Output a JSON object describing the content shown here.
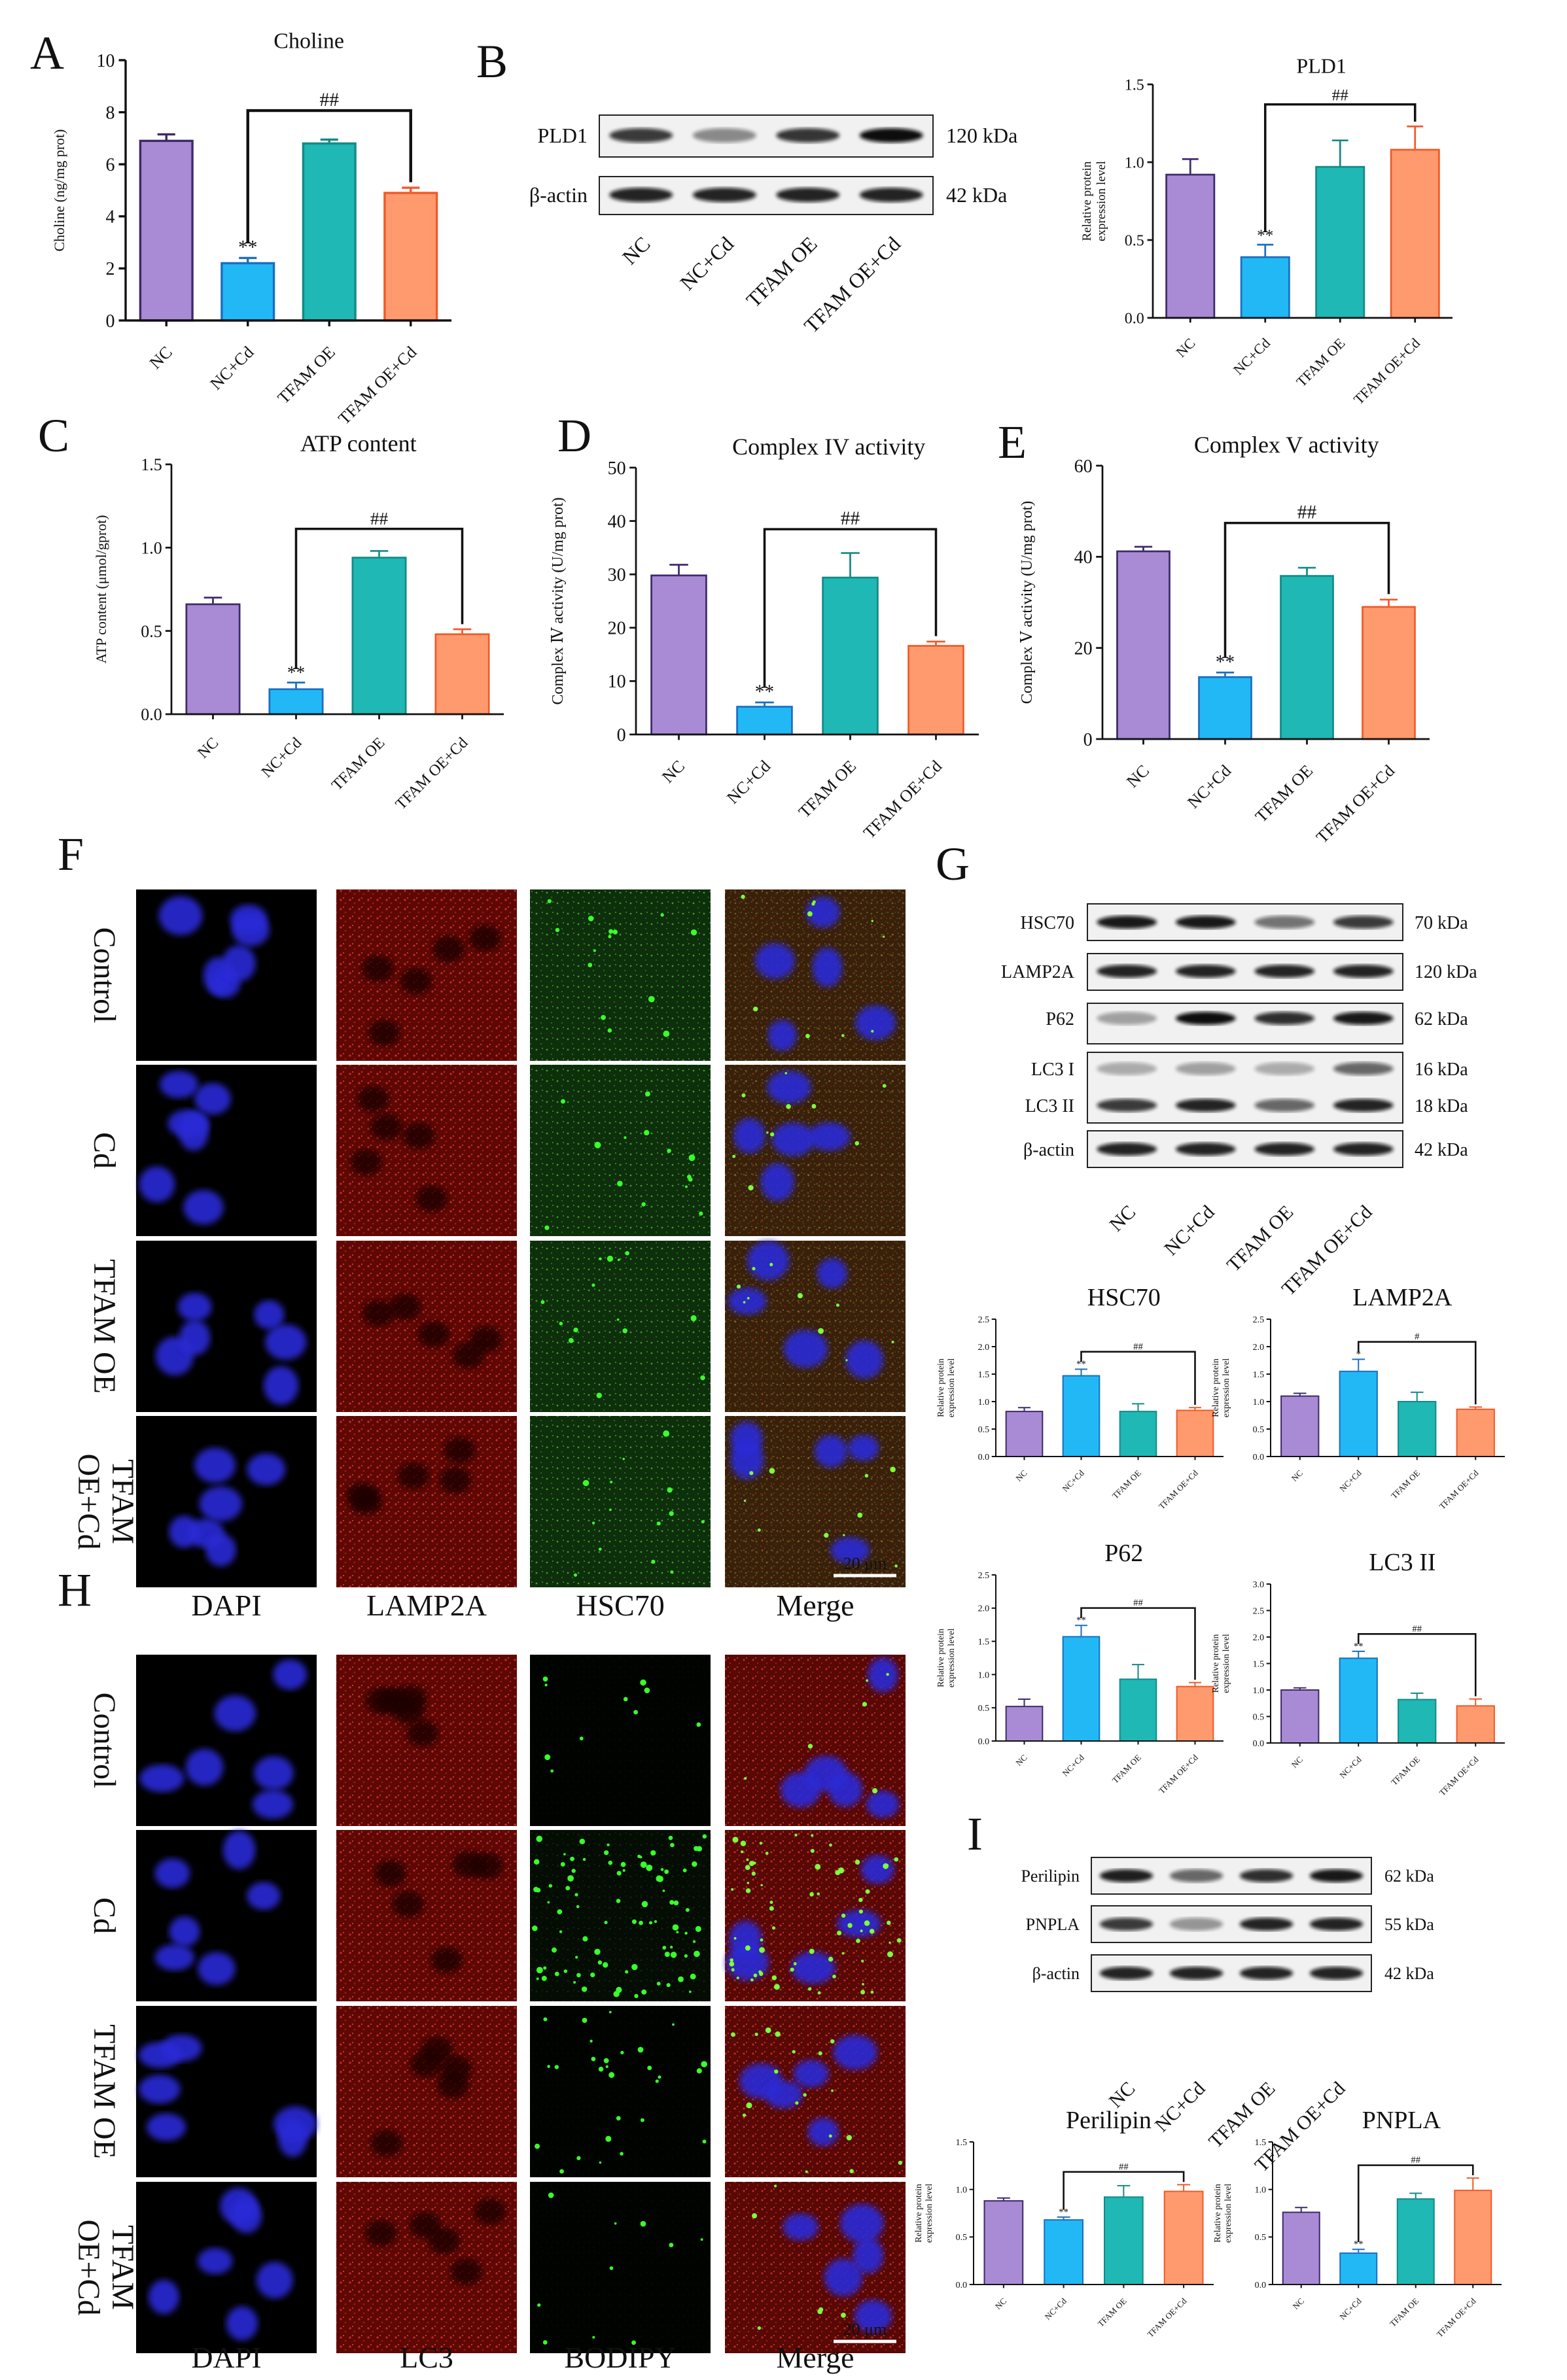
{
  "panel_letters": {
    "A": "A",
    "B": "B",
    "C": "C",
    "D": "D",
    "E": "E",
    "F": "F",
    "G": "G",
    "H": "H",
    "I": "I"
  },
  "colors": {
    "nc": "#A88BD4",
    "ncd": "#22B8F6",
    "oe": "#1FB8B4",
    "oecd": "#FF9A6E",
    "nc_edge": "#3C2A6B",
    "ncd_edge": "#1A6FC0",
    "oe_edge": "#148A86",
    "oecd_edge": "#F05A28"
  },
  "western_blots": {
    "PLD1": {
      "lanes": [
        "NC",
        "NC+Cd",
        "TFAM OE",
        "TFAM OE+Cd"
      ],
      "rows": [
        {
          "label": "PLD1",
          "size": "120 kDa"
        },
        {
          "label": "β-actin",
          "size": "42 kDa"
        }
      ]
    },
    "G": {
      "lanes": [
        "NC",
        "NC+Cd",
        "TFAM OE",
        "TFAM OE+Cd"
      ],
      "rows": [
        {
          "label": "HSC70",
          "size": "70 kDa"
        },
        {
          "label": "LAMP2A",
          "size": "120 kDa"
        },
        {
          "label": "P62",
          "size": "62 kDa"
        },
        {
          "label": "LC3 I",
          "size": "16 kDa"
        },
        {
          "label": "LC3 II",
          "size": "18 kDa"
        },
        {
          "label": "β-actin",
          "size": "42 kDa"
        }
      ]
    },
    "I": {
      "lanes": [
        "NC",
        "NC+Cd",
        "TFAM OE",
        "TFAM OE+Cd"
      ],
      "rows": [
        {
          "label": "Perilipin",
          "size": "62 kDa"
        },
        {
          "label": "PNPLA",
          "size": "55 kDa"
        },
        {
          "label": "β-actin",
          "size": "42 kDa"
        }
      ]
    }
  },
  "micrographs": {
    "F": {
      "rows": [
        "Control",
        "Cd",
        "TFAM OE",
        "TFAM\nOE+Cd"
      ],
      "cols": [
        "DAPI",
        "LAMP2A",
        "HSC70",
        "Merge"
      ],
      "scale_bar": "20 μm"
    },
    "H": {
      "rows": [
        "Control",
        "Cd",
        "TFAM OE",
        "TFAM\nOE+Cd"
      ],
      "cols": [
        "DAPI",
        "LC3",
        "BODIPY",
        "Merge"
      ],
      "scale_bar": "20 μm"
    }
  },
  "chart_data": [
    {
      "id": "choline",
      "type": "bar",
      "title": "Choline",
      "ylabel": "Choline (ng/mg prot)",
      "categories": [
        "NC",
        "NC+Cd",
        "TFAM OE",
        "TFAM OE+Cd"
      ],
      "values": [
        6.9,
        2.2,
        6.8,
        4.9
      ],
      "errors": [
        0.25,
        0.2,
        0.15,
        0.2
      ],
      "ylim": [
        0,
        10
      ],
      "yticks": [
        "0",
        "2",
        "4",
        "6",
        "8",
        "10"
      ],
      "marks": [
        "",
        "**",
        "",
        ""
      ],
      "comparison": {
        "from": 1,
        "to": 3,
        "label": "##"
      }
    },
    {
      "id": "pld1",
      "type": "bar",
      "title": "PLD1",
      "ylabel": "Relative protein\nexpression level",
      "categories": [
        "NC",
        "NC+Cd",
        "TFAM OE",
        "TFAM OE+Cd"
      ],
      "values": [
        0.92,
        0.39,
        0.97,
        1.08
      ],
      "errors": [
        0.1,
        0.08,
        0.17,
        0.15
      ],
      "ylim": [
        0,
        1.5
      ],
      "yticks": [
        "0.0",
        "0.5",
        "1.0",
        "1.5"
      ],
      "marks": [
        "",
        "**",
        "",
        ""
      ],
      "comparison": {
        "from": 1,
        "to": 3,
        "label": "##"
      }
    },
    {
      "id": "atp",
      "type": "bar",
      "title": "ATP content",
      "ylabel": "ATP content (μmol/gprot)",
      "categories": [
        "NC",
        "NC+Cd",
        "TFAM OE",
        "TFAM OE+Cd"
      ],
      "values": [
        0.66,
        0.15,
        0.94,
        0.48
      ],
      "errors": [
        0.04,
        0.04,
        0.04,
        0.03
      ],
      "ylim": [
        0,
        1.5
      ],
      "yticks": [
        "0.0",
        "0.5",
        "1.0",
        "1.5"
      ],
      "marks": [
        "",
        "**",
        "",
        ""
      ],
      "comparison": {
        "from": 1,
        "to": 3,
        "label": "##"
      }
    },
    {
      "id": "complexiv",
      "type": "bar",
      "title": "Complex IV activity",
      "ylabel": "Complex Ⅳ activity (U/mg prot)",
      "categories": [
        "NC",
        "NC+Cd",
        "TFAM OE",
        "TFAM OE+Cd"
      ],
      "values": [
        29.8,
        5.2,
        29.4,
        16.6
      ],
      "errors": [
        2,
        0.8,
        4.6,
        0.8
      ],
      "ylim": [
        0,
        50
      ],
      "yticks": [
        "0",
        "10",
        "20",
        "30",
        "40",
        "50"
      ],
      "marks": [
        "",
        "**",
        "",
        ""
      ],
      "comparison": {
        "from": 1,
        "to": 3,
        "label": "##"
      }
    },
    {
      "id": "complexv",
      "type": "bar",
      "title": "Complex V activity",
      "ylabel": "Complex Ⅴ activity (U/mg prot)",
      "categories": [
        "NC",
        "NC+Cd",
        "TFAM OE",
        "TFAM OE+Cd"
      ],
      "values": [
        41.2,
        13.6,
        35.8,
        29
      ],
      "errors": [
        1,
        1,
        1.8,
        1.6
      ],
      "ylim": [
        0,
        60
      ],
      "yticks": [
        "0",
        "20",
        "40",
        "60"
      ],
      "marks": [
        "",
        "**",
        "",
        ""
      ],
      "comparison": {
        "from": 1,
        "to": 3,
        "label": "##"
      }
    },
    {
      "id": "hsc70",
      "type": "bar",
      "title": "HSC70",
      "ylabel": "Relative protein\nexpression level",
      "categories": [
        "NC",
        "NC+Cd",
        "TFAM OE",
        "TFAM OE+Cd"
      ],
      "values": [
        0.82,
        1.47,
        0.82,
        0.84
      ],
      "errors": [
        0.07,
        0.12,
        0.14,
        0.05
      ],
      "ylim": [
        0,
        2.5
      ],
      "yticks": [
        "0.0",
        "0.5",
        "1.0",
        "1.5",
        "2.0",
        "2.5"
      ],
      "marks": [
        "",
        "**",
        "",
        ""
      ],
      "comparison": {
        "from": 1,
        "to": 3,
        "label": "##"
      }
    },
    {
      "id": "lamp2a",
      "type": "bar",
      "title": "LAMP2A",
      "ylabel": "Relative protein\nexpression level",
      "categories": [
        "NC",
        "NC+Cd",
        "TFAM OE",
        "TFAM OE+Cd"
      ],
      "values": [
        1.1,
        1.55,
        1.0,
        0.86
      ],
      "errors": [
        0.05,
        0.22,
        0.17,
        0.04
      ],
      "ylim": [
        0,
        2.5
      ],
      "yticks": [
        "0.0",
        "0.5",
        "1.0",
        "1.5",
        "2.0",
        "2.5"
      ],
      "marks": [
        "",
        "*",
        "",
        ""
      ],
      "comparison": {
        "from": 1,
        "to": 3,
        "label": "#"
      }
    },
    {
      "id": "p62",
      "type": "bar",
      "title": "P62",
      "ylabel": "Relative protein\nexpression level",
      "categories": [
        "NC",
        "NC+Cd",
        "TFAM OE",
        "TFAM OE+Cd"
      ],
      "values": [
        0.52,
        1.57,
        0.93,
        0.82
      ],
      "errors": [
        0.11,
        0.17,
        0.22,
        0.06
      ],
      "ylim": [
        0,
        2.5
      ],
      "yticks": [
        "0.0",
        "0.5",
        "1.0",
        "1.5",
        "2.0",
        "2.5"
      ],
      "marks": [
        "",
        "**",
        "",
        ""
      ],
      "comparison": {
        "from": 1,
        "to": 3,
        "label": "##"
      }
    },
    {
      "id": "lc3ii",
      "type": "bar",
      "title": "LC3 II",
      "ylabel": "Relative protein\nexpression level",
      "categories": [
        "NC",
        "NC+Cd",
        "TFAM OE",
        "TFAM OE+Cd"
      ],
      "values": [
        1.0,
        1.6,
        0.82,
        0.7
      ],
      "errors": [
        0.04,
        0.13,
        0.12,
        0.13
      ],
      "ylim": [
        0,
        3.0
      ],
      "yticks": [
        "0.0",
        "0.5",
        "1.0",
        "1.5",
        "2.0",
        "2.5",
        "3.0"
      ],
      "marks": [
        "",
        "**",
        "",
        ""
      ],
      "comparison": {
        "from": 1,
        "to": 3,
        "label": "##"
      }
    },
    {
      "id": "perilipin",
      "type": "bar",
      "title": "Perilipin",
      "ylabel": "Relative protein\nexpression level",
      "categories": [
        "NC",
        "NC+Cd",
        "TFAM OE",
        "TFAM OE+Cd"
      ],
      "values": [
        0.88,
        0.68,
        0.92,
        0.98
      ],
      "errors": [
        0.03,
        0.03,
        0.12,
        0.07
      ],
      "ylim": [
        0,
        1.5
      ],
      "yticks": [
        "0.0",
        "0.5",
        "1.0",
        "1.5"
      ],
      "marks": [
        "",
        "**",
        "",
        ""
      ],
      "comparison": {
        "from": 1,
        "to": 3,
        "label": "##"
      }
    },
    {
      "id": "pnpla",
      "type": "bar",
      "title": "PNPLA",
      "ylabel": "Relative protein\nexpression level",
      "categories": [
        "NC",
        "NC+Cd",
        "TFAM OE",
        "TFAM OE+Cd"
      ],
      "values": [
        0.76,
        0.33,
        0.9,
        0.99
      ],
      "errors": [
        0.05,
        0.04,
        0.06,
        0.13
      ],
      "ylim": [
        0,
        1.5
      ],
      "yticks": [
        "0.0",
        "0.5",
        "1.0",
        "1.5"
      ],
      "marks": [
        "",
        "**",
        "",
        ""
      ],
      "comparison": {
        "from": 1,
        "to": 3,
        "label": "##"
      }
    }
  ]
}
